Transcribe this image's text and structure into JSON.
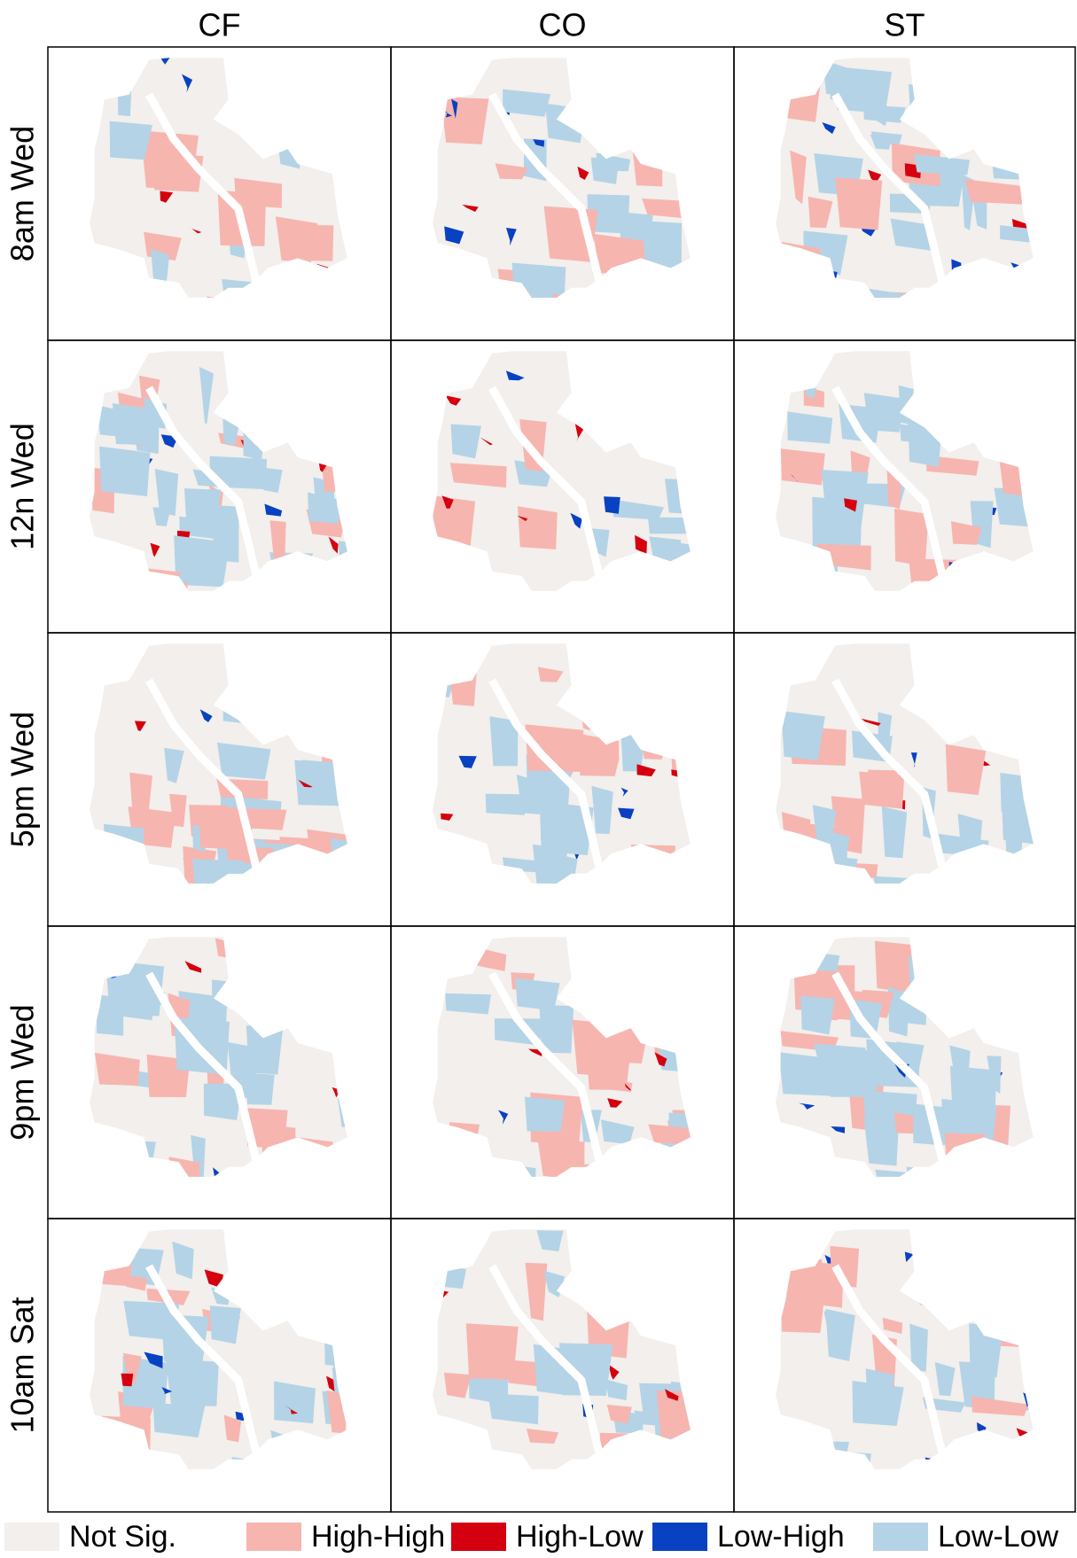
{
  "columns": [
    "CF",
    "CO",
    "ST"
  ],
  "rows": [
    "8am Wed",
    "12n Wed",
    "5pm Wed",
    "9pm Wed",
    "10am Sat"
  ],
  "legend": [
    {
      "label": "Not Sig.",
      "color": "#f2efec"
    },
    {
      "label": "High-High",
      "color": "#f7b5b0"
    },
    {
      "label": "High-Low",
      "color": "#d5000f"
    },
    {
      "label": "Low-High",
      "color": "#0841c2"
    },
    {
      "label": "Low-Low",
      "color": "#b4d3e6"
    }
  ]
}
